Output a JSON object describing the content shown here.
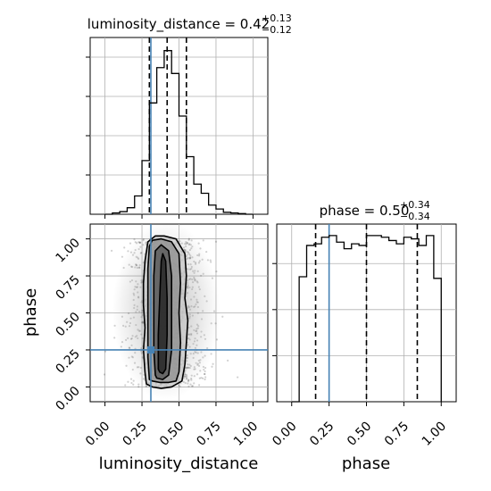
{
  "colors": {
    "truth": "#4682b4",
    "hist": "#000000",
    "grid": "#b0b0b0",
    "point": "#000000"
  },
  "chart_data": [
    {
      "type": "histogram",
      "title": {
        "text": "luminosity_distance = 0.42",
        "sup": "+0.13",
        "sub": "−0.12"
      },
      "xlim": [
        -0.1,
        1.1
      ],
      "bin_edges": [
        0.0,
        0.05,
        0.1,
        0.15,
        0.2,
        0.25,
        0.3,
        0.35,
        0.4,
        0.45,
        0.5,
        0.55,
        0.6,
        0.65,
        0.7,
        0.75,
        0.8,
        0.85,
        0.9,
        0.95,
        1.0
      ],
      "counts": [
        0,
        2,
        4,
        10,
        28,
        82,
        170,
        224,
        250,
        215,
        150,
        88,
        46,
        32,
        14,
        8,
        3,
        2,
        1,
        0
      ],
      "ymax": 270,
      "quantiles": [
        0.3,
        0.42,
        0.55
      ],
      "truth": 0.31
    },
    {
      "type": "histogram",
      "title": {
        "text": "phase = 0.50",
        "sup": "+0.34",
        "sub": "−0.34"
      },
      "xlim": [
        -0.1,
        1.1
      ],
      "xlabel": "phase",
      "xticks": [
        "0.00",
        "0.25",
        "0.50",
        "0.75",
        "1.00"
      ],
      "bin_edges": [
        0.0,
        0.05,
        0.1,
        0.15,
        0.2,
        0.25,
        0.3,
        0.35,
        0.4,
        0.45,
        0.5,
        0.55,
        0.6,
        0.65,
        0.7,
        0.75,
        0.8,
        0.85,
        0.9,
        0.95,
        1.0
      ],
      "counts": [
        0,
        76,
        95,
        96,
        100,
        101,
        97,
        93,
        96,
        95,
        101,
        101,
        100,
        98,
        96,
        100,
        99,
        95,
        101,
        75
      ],
      "ymax": 108,
      "quantiles": [
        0.16,
        0.5,
        0.84
      ],
      "truth": 0.25
    },
    {
      "type": "scatter",
      "description": "2D posterior density",
      "xlabel": "luminosity_distance",
      "ylabel": "phase",
      "xlim": [
        -0.1,
        1.1
      ],
      "ylim": [
        -0.1,
        1.1
      ],
      "xticks": [
        "0.00",
        "0.25",
        "0.50",
        "0.75",
        "1.00"
      ],
      "yticks": [
        "0.00",
        "0.25",
        "0.50",
        "0.75",
        "1.00"
      ],
      "truth": {
        "x": 0.31,
        "y": 0.25
      },
      "contours": [
        {
          "x": [
            0.28,
            0.27,
            0.26,
            0.27,
            0.26,
            0.26,
            0.27,
            0.29,
            0.34,
            0.4,
            0.48,
            0.54,
            0.55,
            0.54,
            0.56,
            0.55,
            0.54,
            0.52,
            0.45,
            0.38,
            0.32,
            0.28
          ],
          "y": [
            0.02,
            0.1,
            0.25,
            0.4,
            0.55,
            0.7,
            0.85,
            0.98,
            1.02,
            1.02,
            1.0,
            0.9,
            0.75,
            0.6,
            0.45,
            0.3,
            0.15,
            0.04,
            0.0,
            -0.01,
            0.0,
            0.02
          ]
        },
        {
          "x": [
            0.3,
            0.29,
            0.29,
            0.29,
            0.29,
            0.3,
            0.32,
            0.38,
            0.45,
            0.5,
            0.51,
            0.5,
            0.51,
            0.5,
            0.48,
            0.43,
            0.37,
            0.32,
            0.3
          ],
          "y": [
            0.05,
            0.2,
            0.4,
            0.6,
            0.8,
            0.95,
            0.99,
            1.0,
            0.98,
            0.9,
            0.7,
            0.5,
            0.3,
            0.1,
            0.04,
            0.03,
            0.03,
            0.04,
            0.05
          ]
        },
        {
          "x": [
            0.34,
            0.33,
            0.33,
            0.33,
            0.34,
            0.38,
            0.43,
            0.45,
            0.45,
            0.45,
            0.43,
            0.39,
            0.35,
            0.34
          ],
          "y": [
            0.08,
            0.25,
            0.5,
            0.75,
            0.92,
            0.96,
            0.92,
            0.75,
            0.5,
            0.25,
            0.08,
            0.05,
            0.06,
            0.08
          ]
        },
        {
          "x": [
            0.36,
            0.36,
            0.37,
            0.38,
            0.39,
            0.41,
            0.42,
            0.42,
            0.41,
            0.39,
            0.37,
            0.36
          ],
          "y": [
            0.12,
            0.35,
            0.6,
            0.85,
            0.9,
            0.85,
            0.6,
            0.35,
            0.12,
            0.09,
            0.1,
            0.12
          ]
        }
      ]
    }
  ]
}
